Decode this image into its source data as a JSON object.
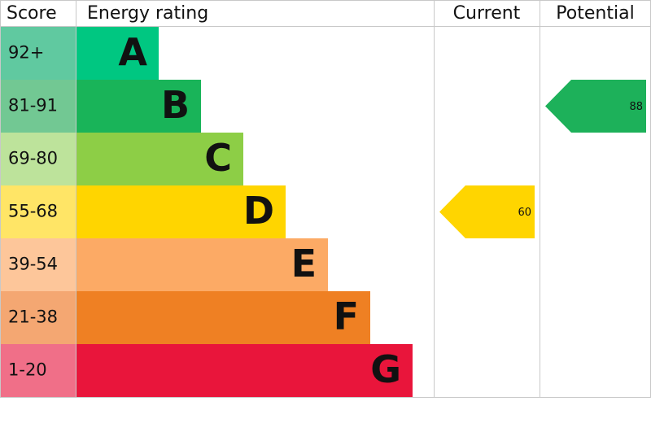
{
  "chart_data": {
    "type": "epc",
    "headers": [
      "Score",
      "Energy rating",
      "Current",
      "Potential"
    ],
    "bands": [
      {
        "score": "92+",
        "rating": "A",
        "color": "#00c781",
        "score_color": "#60c9a0"
      },
      {
        "score": "81-91",
        "rating": "B",
        "color": "#19b459",
        "score_color": "#72c893"
      },
      {
        "score": "69-80",
        "rating": "C",
        "color": "#8dce46",
        "score_color": "#bde39b"
      },
      {
        "score": "55-68",
        "rating": "D",
        "color": "#ffd500",
        "score_color": "#ffe566"
      },
      {
        "score": "39-54",
        "rating": "E",
        "color": "#fcaa65",
        "score_color": "#fdc69a"
      },
      {
        "score": "21-38",
        "rating": "F",
        "color": "#ef8023",
        "score_color": "#f4a772"
      },
      {
        "score": "1-20",
        "rating": "G",
        "color": "#e9153b",
        "score_color": "#f06f88"
      }
    ],
    "current": {
      "value": 60,
      "color": "#ffd500"
    },
    "potential": {
      "value": 88,
      "color": "#1db15a"
    }
  }
}
